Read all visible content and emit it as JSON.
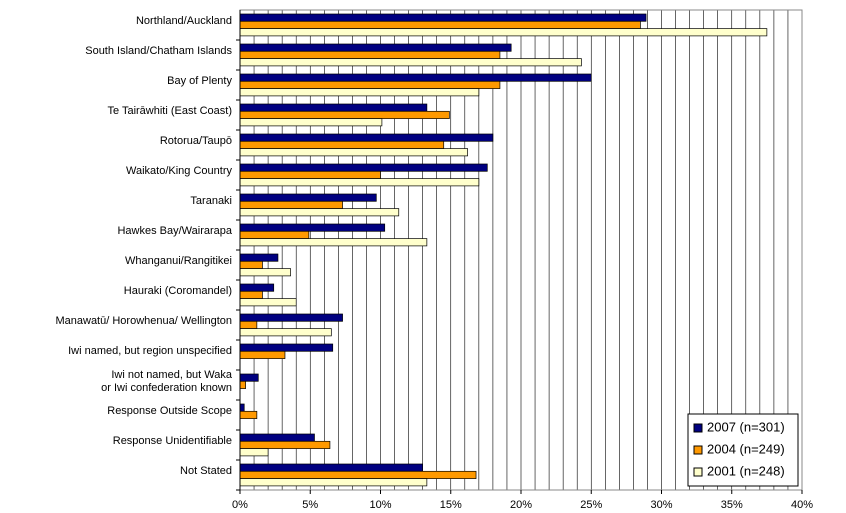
{
  "chart_data": {
    "type": "hbar",
    "categories": [
      "Northland/Auckland",
      "South Island/Chatham Islands",
      "Bay of Plenty",
      "Te Tairāwhiti (East Coast)",
      "Rotorua/Taupō",
      "Waikato/King Country",
      "Taranaki",
      "Hawkes Bay/Wairarapa",
      "Whanganui/Rangitikei",
      "Hauraki (Coromandel)",
      "Manawatū/ Horowhenua/ Wellington",
      "Iwi named, but region unspecified",
      "Iwi not named, but Waka\nor Iwi confederation known",
      "Response Outside Scope",
      "Response Unidentifiable",
      "Not Stated"
    ],
    "series": [
      {
        "name": "2007 (n=301)",
        "color": "#000080",
        "values": [
          28.9,
          19.3,
          25.0,
          13.3,
          18.0,
          17.6,
          9.7,
          10.3,
          2.7,
          2.4,
          7.3,
          6.6,
          1.3,
          0.3,
          5.3,
          13.0
        ]
      },
      {
        "name": "2004 (n=249)",
        "color": "#ff9900",
        "values": [
          28.5,
          18.5,
          18.5,
          14.9,
          14.5,
          10.0,
          7.3,
          4.9,
          1.6,
          1.6,
          1.2,
          3.2,
          0.4,
          1.2,
          6.4,
          16.8
        ]
      },
      {
        "name": "2001 (n=248)",
        "color": "#ffffcc",
        "values": [
          37.5,
          24.3,
          17.0,
          10.1,
          16.2,
          17.0,
          11.3,
          13.3,
          3.6,
          4.0,
          6.5,
          null,
          null,
          null,
          2.0,
          13.3
        ]
      }
    ],
    "xlim": [
      0,
      40
    ],
    "xticks": [
      {
        "value": 0,
        "label": "0%"
      },
      {
        "value": 5,
        "label": "5%"
      },
      {
        "value": 10,
        "label": "10%"
      },
      {
        "value": 15,
        "label": "15%"
      },
      {
        "value": 20,
        "label": "20%"
      },
      {
        "value": 25,
        "label": "25%"
      },
      {
        "value": 30,
        "label": "30%"
      },
      {
        "value": 35,
        "label": "35%"
      },
      {
        "value": 40,
        "label": "40%"
      }
    ],
    "minor_xticks": [
      0,
      1,
      2,
      3,
      4,
      5,
      6,
      7,
      8,
      9,
      10,
      11,
      12,
      13,
      14,
      15,
      16,
      17,
      18,
      19,
      20,
      21,
      22,
      23,
      24,
      25,
      26,
      27,
      28,
      29,
      30,
      31,
      32,
      33,
      34,
      35,
      36,
      37,
      38,
      39,
      40
    ],
    "grid": true,
    "legend": "lower right"
  }
}
